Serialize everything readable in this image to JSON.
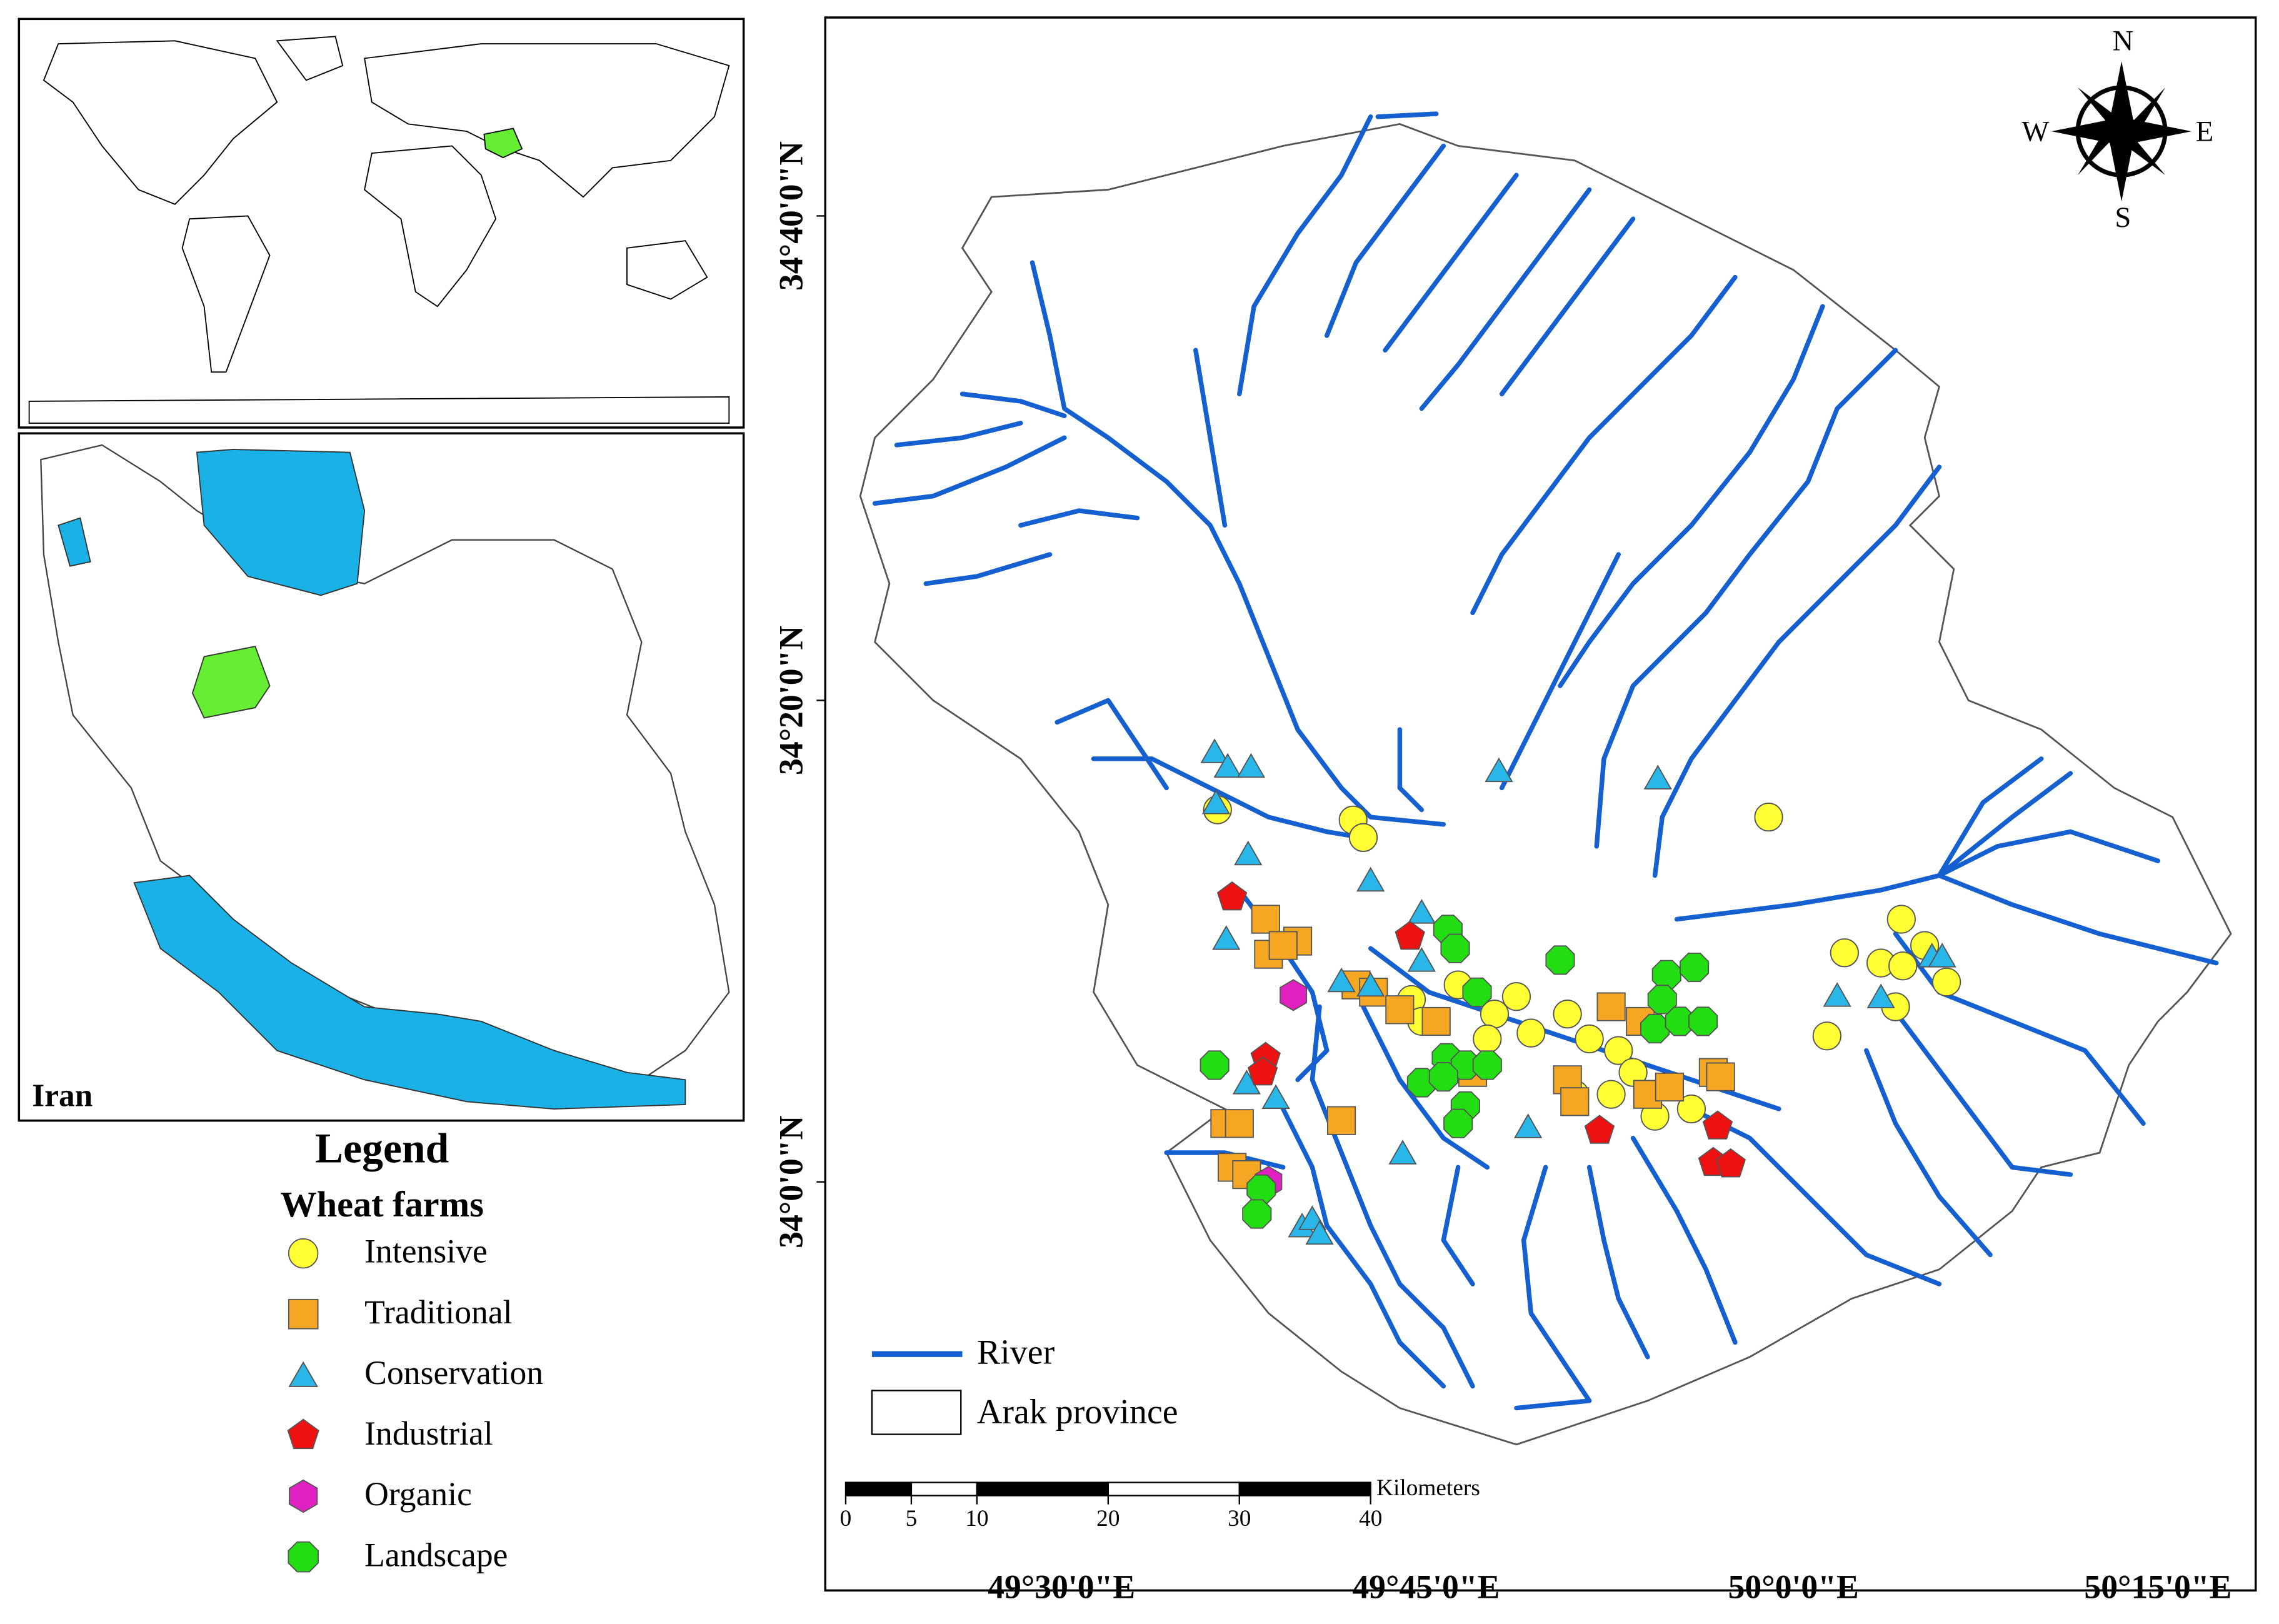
{
  "iran_inset": {
    "label": "Iran"
  },
  "legend": {
    "title": "Legend",
    "subtitle": "Wheat farms",
    "items": [
      {
        "label": "Intensive"
      },
      {
        "label": "Traditional"
      },
      {
        "label": "Conservation"
      },
      {
        "label": "Industrial"
      },
      {
        "label": "Organic"
      },
      {
        "label": "Landscape"
      }
    ]
  },
  "map": {
    "latitude_labels": [
      "34°40'0\"N",
      "34°20'0\"N",
      "34°0'0\"N"
    ],
    "longitude_labels": [
      "49°30'0\"E",
      "49°45'0\"E",
      "50°0'0\"E",
      "50°15'0\"E"
    ],
    "compass": {
      "north": "N",
      "south": "S",
      "east": "E",
      "west": "W"
    },
    "map_legend": {
      "river": "River",
      "province": "Arak province"
    },
    "scale_bar": {
      "unit": "Kilometers",
      "ticks": [
        0,
        5,
        10,
        20,
        30,
        40
      ]
    }
  }
}
